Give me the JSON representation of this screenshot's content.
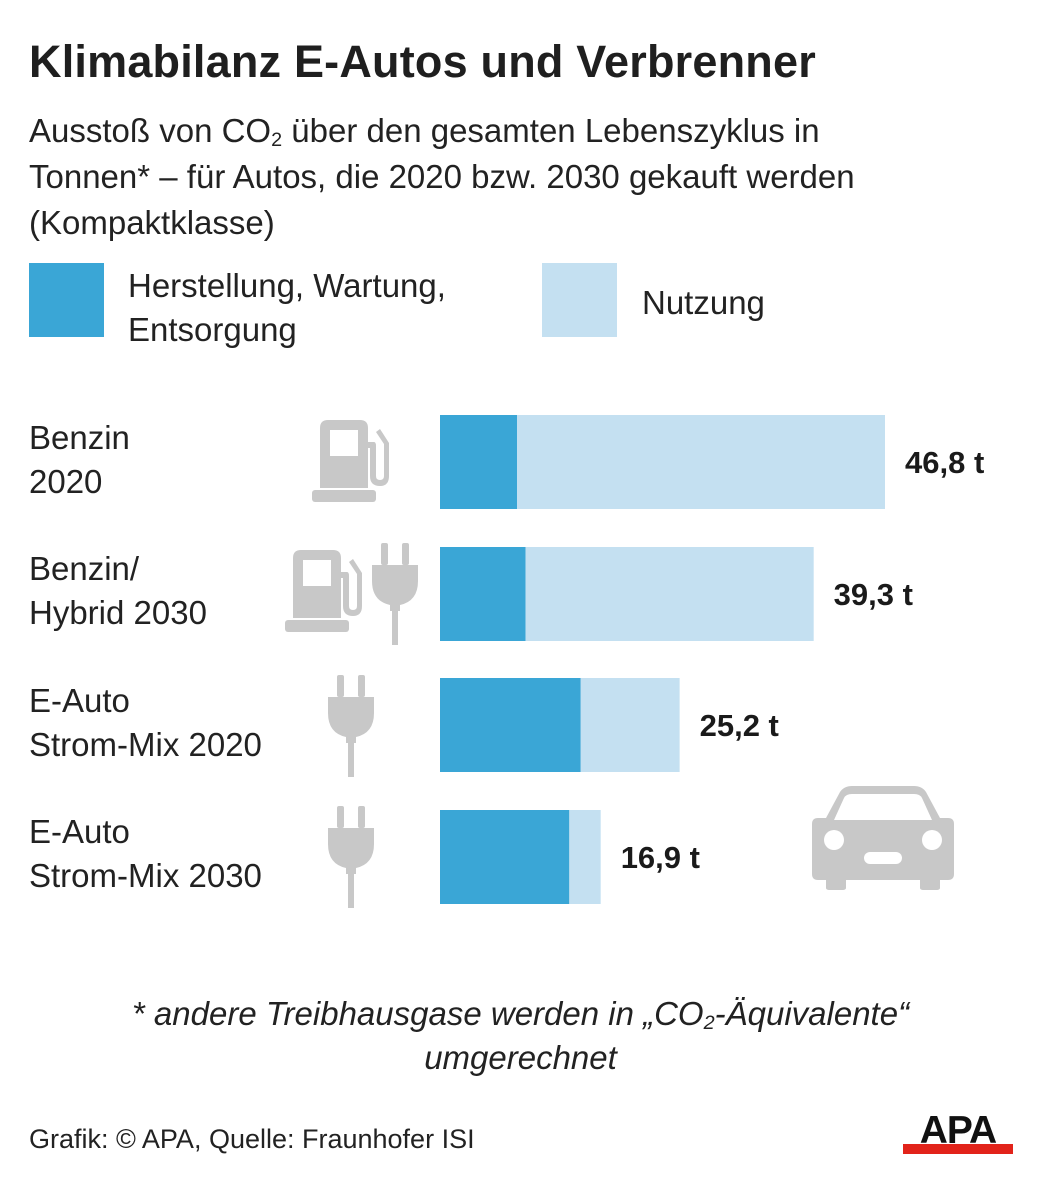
{
  "title": "Klimabilanz E-Autos und Verbrenner",
  "subtitle": {
    "part1": "Ausstoß von CO",
    "sub": "2",
    "part2": " über den gesamten Lebenszyklus in Tonnen* – für Autos, die 2020 bzw. 2030 gekauft werden (Kompaktklasse)"
  },
  "colors": {
    "production": "#3aa6d6",
    "usage": "#c4e0f1",
    "icon": "#c8c8c8",
    "text": "#222222",
    "logo_red": "#e2231a"
  },
  "legend": [
    {
      "label": "Herstellung, Wartung, Entsorgung",
      "color": "#3aa6d6"
    },
    {
      "label": "Nutzung",
      "color": "#c4e0f1"
    }
  ],
  "chart_data": {
    "type": "bar",
    "orientation": "horizontal",
    "stacked": true,
    "categories": [
      "Benzin 2020",
      "Benzin/ Hybrid 2030",
      "E-Auto Strom-Mix 2020",
      "E-Auto Strom-Mix 2030"
    ],
    "category_labels": [
      [
        "Benzin",
        "2020"
      ],
      [
        "Benzin/",
        "Hybrid 2030"
      ],
      [
        "E-Auto",
        "Strom-Mix 2020"
      ],
      [
        "E-Auto",
        "Strom-Mix 2030"
      ]
    ],
    "series": [
      {
        "name": "Herstellung, Wartung, Entsorgung",
        "values": [
          8.1,
          9.0,
          14.8,
          13.6
        ]
      },
      {
        "name": "Nutzung",
        "values": [
          38.7,
          30.3,
          10.4,
          3.3
        ]
      }
    ],
    "totals": [
      46.8,
      39.3,
      25.2,
      16.9
    ],
    "total_labels": [
      "46,8 t",
      "39,3 t",
      "25,2 t",
      "16,9 t"
    ],
    "icons": [
      [
        "fuel-pump"
      ],
      [
        "fuel-pump",
        "plug"
      ],
      [
        "plug"
      ],
      [
        "plug",
        "car"
      ]
    ],
    "xlim": [
      0,
      46.8
    ],
    "grid": false,
    "legend_position": "top"
  },
  "footnote": {
    "part1": "* andere Treibhausgase werden in „CO",
    "sub": "2",
    "part2": "-Äquivalente“",
    "line2": "umgerechnet"
  },
  "source": "Grafik: © APA, Quelle: Fraunhofer ISI",
  "logo_text": "APA"
}
